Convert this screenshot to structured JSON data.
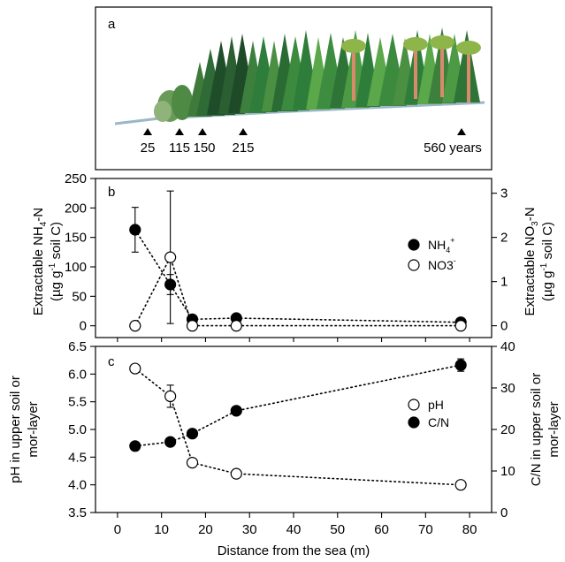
{
  "panel_a": {
    "letter": "a",
    "age_labels": [
      "25",
      "115",
      "150",
      "215",
      "560 years"
    ]
  },
  "chart_data": [
    {
      "type": "scatter",
      "panel": "b",
      "x_axis_label": "Distance from the sea (m)",
      "xlim": [
        -5,
        85
      ],
      "x_ticks": [
        0,
        10,
        20,
        30,
        40,
        50,
        60,
        70,
        80
      ],
      "left_axis": {
        "label_line1": "Extractable NH",
        "label_sub": "4",
        "label_tail": "-N",
        "label_line2": "(µg g",
        "label_sup": "-1",
        "label_line2_tail": " soil C)",
        "ylim": [
          -20,
          250
        ],
        "ticks": [
          0,
          50,
          100,
          150,
          200,
          250
        ]
      },
      "right_axis": {
        "label_line1": "Extractable NO",
        "label_sub": "3",
        "label_tail": "-N",
        "label_line2": "(µg g",
        "label_sup": "-1",
        "label_line2_tail": " soil C)",
        "ylim": [
          -0.267,
          3.333
        ],
        "ticks": [
          0,
          1,
          2,
          3
        ]
      },
      "series": [
        {
          "name": "NH4+",
          "legend_main": "NH",
          "legend_sub": "4",
          "legend_sup": "+",
          "axis": "left",
          "marker": "filled",
          "x": [
            4,
            12,
            17,
            27,
            78
          ],
          "y": [
            163,
            70,
            11,
            13,
            6
          ],
          "err": [
            38,
            17,
            0,
            0,
            0
          ]
        },
        {
          "name": "NO3-",
          "legend_main": "NO3",
          "legend_sub": "",
          "legend_sup": "-",
          "axis": "right",
          "marker": "open",
          "x": [
            4,
            12,
            17,
            27,
            78
          ],
          "y": [
            0,
            1.55,
            0,
            0,
            0
          ],
          "err": [
            0,
            1.5,
            0,
            0,
            0
          ]
        }
      ],
      "panel_letter": "b"
    },
    {
      "type": "scatter",
      "panel": "c",
      "x_axis_label": "Distance from the sea (m)",
      "xlim": [
        -5,
        85
      ],
      "x_ticks": [
        0,
        10,
        20,
        30,
        40,
        50,
        60,
        70,
        80
      ],
      "left_axis": {
        "label_line1": "pH in upper soil or",
        "label_line2": "mor-layer",
        "ylim": [
          3.5,
          6.5
        ],
        "ticks": [
          3.5,
          4.0,
          4.5,
          5.0,
          5.5,
          6.0,
          6.5
        ]
      },
      "right_axis": {
        "label_line1": "C/N in upper soil or",
        "label_line2": "mor-layer",
        "ylim": [
          0,
          40
        ],
        "ticks": [
          0,
          10,
          20,
          30,
          40
        ]
      },
      "series": [
        {
          "name": "pH",
          "axis": "left",
          "marker": "open",
          "x": [
            4,
            12,
            17,
            27,
            78
          ],
          "y": [
            6.1,
            5.6,
            4.4,
            4.2,
            4.0
          ],
          "err": [
            0,
            0.2,
            0,
            0,
            0
          ]
        },
        {
          "name": "C/N",
          "axis": "right",
          "marker": "filled",
          "x": [
            4,
            12,
            17,
            27,
            78
          ],
          "y": [
            16,
            17,
            19,
            24.5,
            35.5
          ],
          "err": [
            0,
            0,
            0,
            0,
            1.5
          ]
        }
      ],
      "panel_letter": "c"
    }
  ],
  "colors": {
    "axis": "#000000",
    "forest_dark": "#1f4d2a",
    "forest_mid": "#2e7d3a",
    "forest_light": "#5aa84a",
    "trunk": "#d98a6a"
  }
}
